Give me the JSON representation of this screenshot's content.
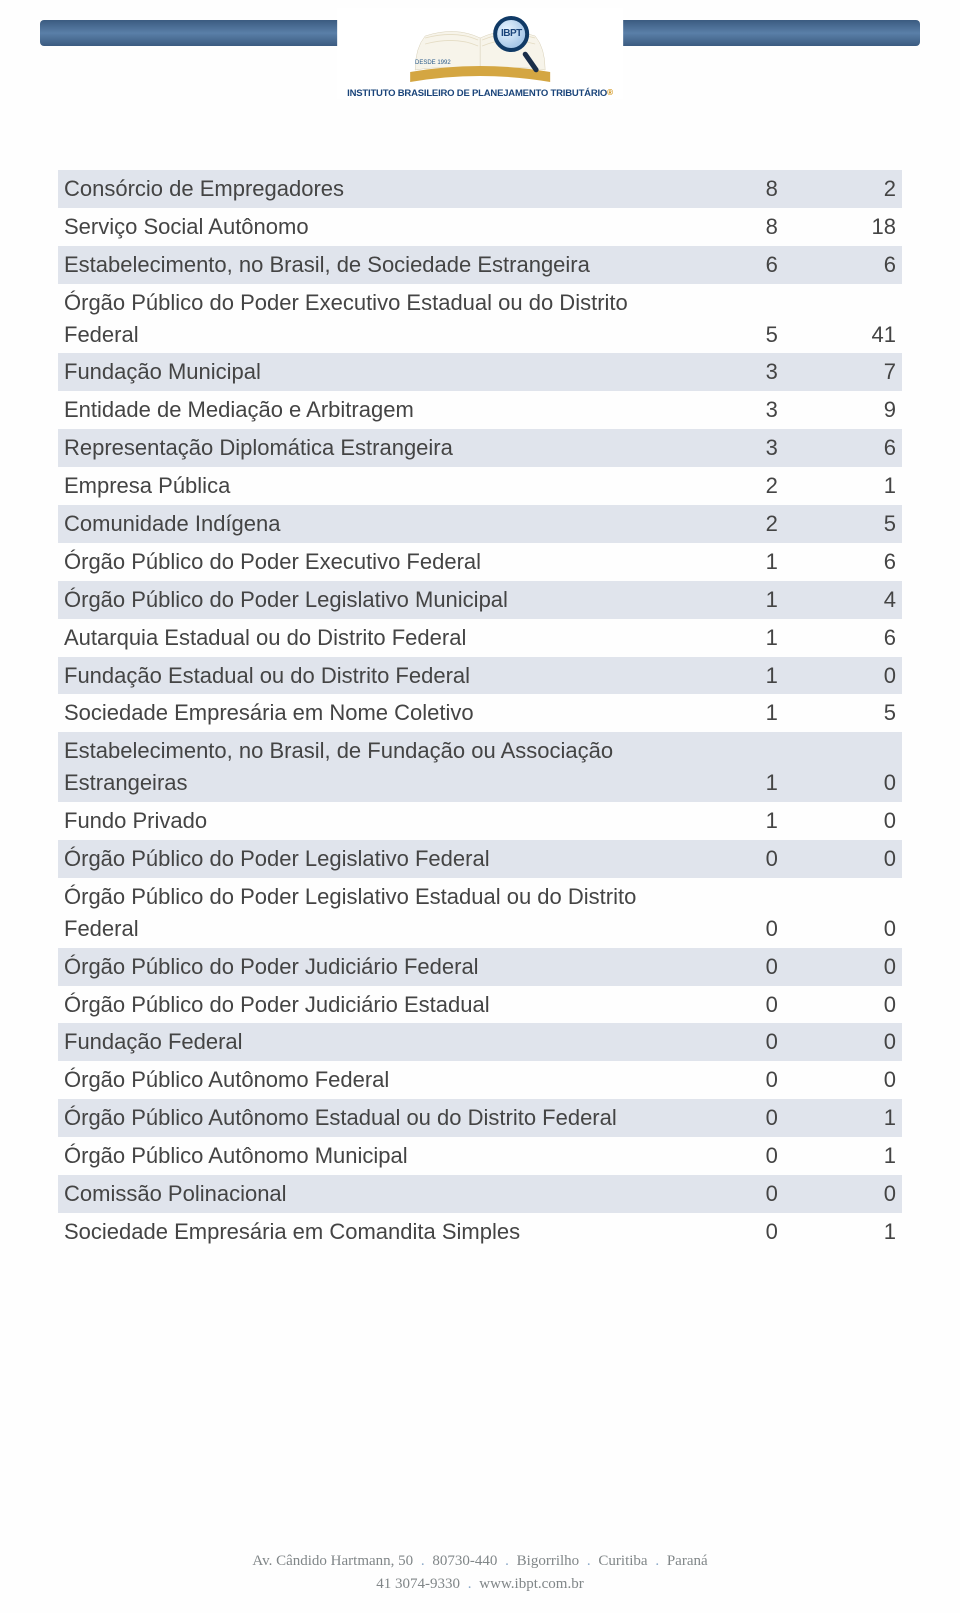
{
  "header": {
    "brand_abbrev": "IBPT",
    "tagline": "INSTITUTO BRASILEIRO DE PLANEJAMENTO TRIBUTÁRIO",
    "since": "DESDE 1992",
    "bar_color": "#4a6b90",
    "accent_color": "#d4a642",
    "brand_color": "#1a447a"
  },
  "table": {
    "stripe_color": "#e0e4ec",
    "text_color": "#444444",
    "font_size_pt": 17,
    "col_widths_pct": [
      72,
      14,
      14
    ],
    "col_align": [
      "left",
      "right",
      "right"
    ],
    "rows": [
      {
        "label": "Consórcio de Empregadores",
        "v1": 8,
        "v2": 2,
        "stripe": true
      },
      {
        "label": "Serviço Social Autônomo",
        "v1": 8,
        "v2": 18,
        "stripe": false
      },
      {
        "label": "Estabelecimento, no Brasil, de Sociedade Estrangeira",
        "v1": 6,
        "v2": 6,
        "stripe": true
      },
      {
        "label": "Órgão Público do Poder Executivo Estadual ou do Distrito Federal",
        "v1": 5,
        "v2": 41,
        "stripe": false
      },
      {
        "label": "Fundação Municipal",
        "v1": 3,
        "v2": 7,
        "stripe": true
      },
      {
        "label": "Entidade de Mediação e Arbitragem",
        "v1": 3,
        "v2": 9,
        "stripe": false
      },
      {
        "label": "Representação Diplomática Estrangeira",
        "v1": 3,
        "v2": 6,
        "stripe": true
      },
      {
        "label": "Empresa Pública",
        "v1": 2,
        "v2": 1,
        "stripe": false
      },
      {
        "label": "Comunidade Indígena",
        "v1": 2,
        "v2": 5,
        "stripe": true
      },
      {
        "label": "Órgão Público do Poder Executivo Federal",
        "v1": 1,
        "v2": 6,
        "stripe": false
      },
      {
        "label": "Órgão Público do Poder Legislativo Municipal",
        "v1": 1,
        "v2": 4,
        "stripe": true
      },
      {
        "label": "Autarquia Estadual ou do Distrito Federal",
        "v1": 1,
        "v2": 6,
        "stripe": false
      },
      {
        "label": "Fundação Estadual ou do Distrito Federal",
        "v1": 1,
        "v2": 0,
        "stripe": true
      },
      {
        "label": "Sociedade Empresária em Nome Coletivo",
        "v1": 1,
        "v2": 5,
        "stripe": false
      },
      {
        "label": "Estabelecimento, no Brasil, de Fundação ou Associação Estrangeiras",
        "v1": 1,
        "v2": 0,
        "stripe": true
      },
      {
        "label": "Fundo Privado",
        "v1": 1,
        "v2": 0,
        "stripe": false
      },
      {
        "label": "Órgão Público do Poder Legislativo Federal",
        "v1": 0,
        "v2": 0,
        "stripe": true
      },
      {
        "label": "Órgão Público do Poder Legislativo Estadual ou do Distrito Federal",
        "v1": 0,
        "v2": 0,
        "stripe": false
      },
      {
        "label": "Órgão Público do Poder Judiciário Federal",
        "v1": 0,
        "v2": 0,
        "stripe": true
      },
      {
        "label": "Órgão Público do Poder Judiciário Estadual",
        "v1": 0,
        "v2": 0,
        "stripe": false
      },
      {
        "label": "Fundação Federal",
        "v1": 0,
        "v2": 0,
        "stripe": true
      },
      {
        "label": "Órgão Público Autônomo Federal",
        "v1": 0,
        "v2": 0,
        "stripe": false
      },
      {
        "label": "Órgão Público Autônomo Estadual ou do Distrito Federal",
        "v1": 0,
        "v2": 1,
        "stripe": true
      },
      {
        "label": "Órgão Público Autônomo Municipal",
        "v1": 0,
        "v2": 1,
        "stripe": false
      },
      {
        "label": "Comissão Polinacional",
        "v1": 0,
        "v2": 0,
        "stripe": true
      },
      {
        "label": "Sociedade Empresária em Comandita Simples",
        "v1": 0,
        "v2": 1,
        "stripe": false
      }
    ]
  },
  "footer": {
    "address": "Av. Cândido Hartmann, 50",
    "zip": "80730-440",
    "district": "Bigorrilho",
    "city": "Curitiba",
    "state": "Paraná",
    "phone": "41 3074-9330",
    "url": "www.ibpt.com.br",
    "text_color": "#808688",
    "dot_color": "#8aa9c9"
  }
}
